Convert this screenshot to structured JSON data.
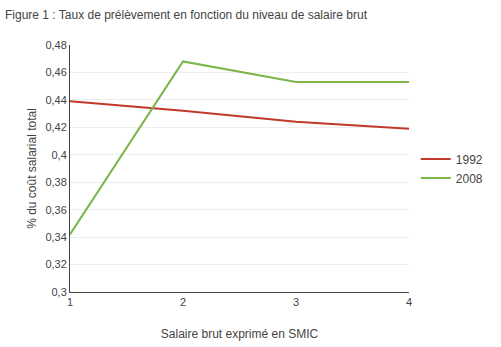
{
  "chart_data": {
    "type": "line",
    "title": "Figure 1 : Taux de prélèvement en fonction du niveau de salaire brut",
    "xlabel": "Salaire brut exprimé en SMIC",
    "ylabel": "% du coût salarial total",
    "x": [
      1,
      2,
      3,
      4
    ],
    "series": [
      {
        "name": "1992",
        "color": "#c0392b",
        "values": [
          0.439,
          0.432,
          0.424,
          0.419
        ]
      },
      {
        "name": "2008",
        "color": "#7ab648",
        "values": [
          0.342,
          0.468,
          0.453,
          0.453
        ]
      }
    ],
    "xlim": [
      1,
      4
    ],
    "xticks": [
      1,
      2,
      3,
      4
    ],
    "ylim": [
      0.3,
      0.48
    ],
    "yticks": [
      {
        "value": 0.3,
        "label": "0,3"
      },
      {
        "value": 0.32,
        "label": "0,32"
      },
      {
        "value": 0.34,
        "label": "0,34"
      },
      {
        "value": 0.36,
        "label": "0,36"
      },
      {
        "value": 0.38,
        "label": "0,38"
      },
      {
        "value": 0.4,
        "label": "0,4"
      },
      {
        "value": 0.42,
        "label": "0,42"
      },
      {
        "value": 0.44,
        "label": "0,44"
      },
      {
        "value": 0.46,
        "label": "0,46"
      },
      {
        "value": 0.48,
        "label": "0,48"
      }
    ],
    "grid": "y",
    "legend": "right"
  }
}
